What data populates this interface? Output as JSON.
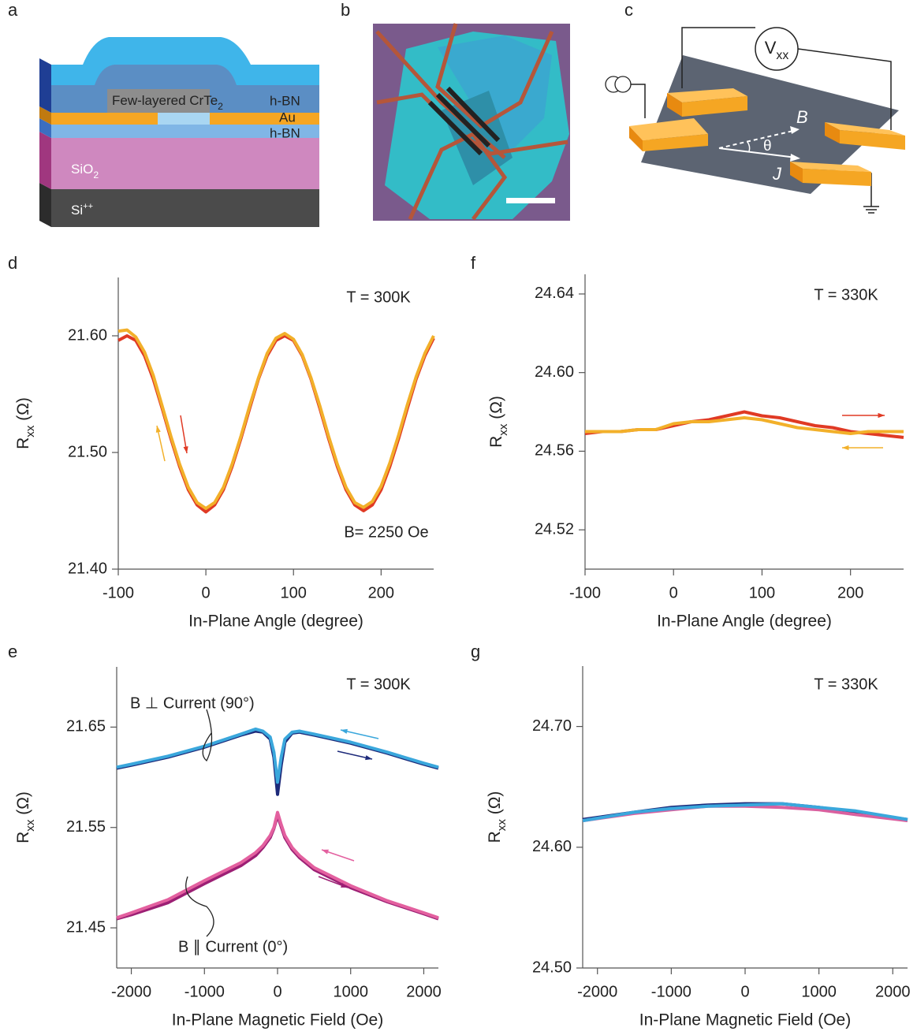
{
  "panel_labels": [
    "a",
    "b",
    "c"
  ],
  "device_stack": {
    "flake": {
      "text": "Few-layered CrTe",
      "sub": "2"
    },
    "top_hbn": "h-BN",
    "au": "Au",
    "bottom_hbn": "h-BN",
    "sio2": {
      "text": "SiO",
      "sub": "2"
    },
    "si": {
      "text": "Si",
      "sup": "++"
    }
  },
  "measurement": {
    "voltmeter": {
      "text": "V",
      "sub": "xx"
    },
    "field": "B",
    "angle": "θ",
    "current": "J"
  },
  "chart_data": [
    {
      "type": "line",
      "panel": "d",
      "annotations": [
        "T = 300K",
        "B= 2250 Oe"
      ],
      "x_label": "In-Plane Angle (degree)",
      "y_label": {
        "text": "R",
        "sub": "xx",
        "suffix": " (Ω)"
      },
      "xlim": [
        -100,
        260
      ],
      "xticks": [
        -100,
        0,
        100,
        200
      ],
      "ylim": [
        21.4,
        21.65
      ],
      "yticks": [
        {
          "value": 21.4,
          "label": "21.40"
        },
        {
          "value": 21.5,
          "label": "21.50"
        },
        {
          "value": 21.6,
          "label": "21.60"
        }
      ],
      "x": [
        -100,
        -90,
        -80,
        -70,
        -60,
        -50,
        -40,
        -30,
        -20,
        -10,
        0,
        10,
        20,
        30,
        40,
        50,
        60,
        70,
        80,
        90,
        100,
        110,
        120,
        130,
        140,
        150,
        160,
        170,
        180,
        190,
        200,
        210,
        220,
        230,
        240,
        250,
        260
      ],
      "series": [
        {
          "color": "#e03a24",
          "values": [
            21.596,
            21.6,
            21.596,
            21.583,
            21.563,
            21.538,
            21.512,
            21.488,
            21.468,
            21.455,
            21.449,
            21.455,
            21.468,
            21.488,
            21.512,
            21.538,
            21.563,
            21.583,
            21.596,
            21.6,
            21.596,
            21.583,
            21.563,
            21.538,
            21.512,
            21.488,
            21.468,
            21.455,
            21.45,
            21.455,
            21.468,
            21.488,
            21.512,
            21.538,
            21.563,
            21.583,
            21.598
          ]
        },
        {
          "color": "#f2b02a",
          "values": [
            21.604,
            21.605,
            21.599,
            21.586,
            21.566,
            21.54,
            21.514,
            21.49,
            21.47,
            21.457,
            21.452,
            21.457,
            21.47,
            21.49,
            21.514,
            21.54,
            21.564,
            21.585,
            21.598,
            21.602,
            21.597,
            21.584,
            21.564,
            21.54,
            21.514,
            21.49,
            21.47,
            21.457,
            21.453,
            21.458,
            21.471,
            21.491,
            21.515,
            21.541,
            21.565,
            21.585,
            21.6
          ]
        }
      ]
    },
    {
      "type": "line",
      "panel": "e",
      "annotations": [
        "T = 300K",
        "B ⊥ Current (90°)",
        "B ∥ Current (0°)"
      ],
      "x_label": "In-Plane Magnetic Field (Oe)",
      "y_label": {
        "text": "R",
        "sub": "xx",
        "suffix": " (Ω)"
      },
      "xlim": [
        -2200,
        2200
      ],
      "xticks": [
        -2000,
        -1000,
        0,
        1000,
        2000
      ],
      "ylim": [
        21.41,
        21.71
      ],
      "yticks": [
        21.45,
        21.55,
        21.65
      ],
      "x": [
        -2200,
        -2000,
        -1500,
        -1000,
        -500,
        -300,
        -200,
        -100,
        -50,
        0,
        50,
        100,
        200,
        300,
        500,
        1000,
        1500,
        2000,
        2200
      ],
      "series": [
        {
          "color": "#1d2a7a",
          "values": [
            21.609,
            21.612,
            21.62,
            21.63,
            21.642,
            21.646,
            21.645,
            21.638,
            21.62,
            21.583,
            21.612,
            21.635,
            21.644,
            21.645,
            21.642,
            21.634,
            21.624,
            21.613,
            21.609
          ]
        },
        {
          "color": "#3aa7dc",
          "values": [
            21.61,
            21.613,
            21.621,
            21.631,
            21.643,
            21.648,
            21.646,
            21.64,
            21.625,
            21.595,
            21.62,
            21.638,
            21.645,
            21.646,
            21.643,
            21.635,
            21.625,
            21.614,
            21.61
          ]
        },
        {
          "color": "#9c1f74",
          "values": [
            21.459,
            21.463,
            21.475,
            21.494,
            21.512,
            21.522,
            21.53,
            21.54,
            21.549,
            21.562,
            21.551,
            21.54,
            21.528,
            21.52,
            21.508,
            21.49,
            21.476,
            21.464,
            21.459
          ]
        },
        {
          "color": "#e3609f",
          "values": [
            21.46,
            21.465,
            21.478,
            21.497,
            21.515,
            21.525,
            21.532,
            21.542,
            21.55,
            21.565,
            21.553,
            21.542,
            21.53,
            21.522,
            21.51,
            21.492,
            21.477,
            21.465,
            21.46
          ]
        }
      ]
    },
    {
      "type": "line",
      "panel": "f",
      "annotations": [
        "T = 330K"
      ],
      "x_label": "In-Plane Angle (degree)",
      "y_label": {
        "text": "R",
        "sub": "xx",
        "suffix": " (Ω)"
      },
      "xlim": [
        -100,
        260
      ],
      "xticks": [
        -100,
        0,
        100,
        200
      ],
      "ylim": [
        24.5,
        24.65
      ],
      "yticks": [
        24.52,
        24.56,
        {
          "value": 24.6,
          "label": "24.60"
        },
        24.64
      ],
      "x": [
        -100,
        -80,
        -60,
        -40,
        -20,
        0,
        20,
        40,
        60,
        80,
        100,
        120,
        140,
        160,
        180,
        200,
        220,
        240,
        260
      ],
      "series": [
        {
          "color": "#e03a24",
          "values": [
            24.569,
            24.57,
            24.57,
            24.571,
            24.571,
            24.573,
            24.575,
            24.576,
            24.578,
            24.58,
            24.578,
            24.577,
            24.575,
            24.573,
            24.572,
            24.57,
            24.569,
            24.568,
            24.567
          ]
        },
        {
          "color": "#f2b02a",
          "values": [
            24.57,
            24.57,
            24.57,
            24.571,
            24.571,
            24.574,
            24.575,
            24.575,
            24.576,
            24.577,
            24.576,
            24.574,
            24.572,
            24.571,
            24.57,
            24.569,
            24.57,
            24.57,
            24.57
          ]
        }
      ]
    },
    {
      "type": "line",
      "panel": "g",
      "annotations": [
        "T = 330K"
      ],
      "x_label": "In-Plane Magnetic Field (Oe)",
      "y_label": {
        "text": "R",
        "sub": "xx",
        "suffix": " (Ω)"
      },
      "xlim": [
        -2200,
        2200
      ],
      "xticks": [
        -2000,
        -1000,
        0,
        1000,
        2000
      ],
      "ylim": [
        24.5,
        24.75
      ],
      "yticks": [
        {
          "value": 24.5,
          "label": "24.50"
        },
        {
          "value": 24.6,
          "label": "24.60"
        },
        {
          "value": 24.7,
          "label": "24.70"
        }
      ],
      "x": [
        -2200,
        -1500,
        -1000,
        -500,
        0,
        500,
        1000,
        1500,
        2200
      ],
      "series": [
        {
          "color": "#1d2a7a",
          "values": [
            24.623,
            24.629,
            24.633,
            24.635,
            24.636,
            24.636,
            24.633,
            24.629,
            24.623
          ]
        },
        {
          "color": "#d9609f",
          "values": [
            24.622,
            24.628,
            24.631,
            24.634,
            24.634,
            24.633,
            24.631,
            24.627,
            24.622
          ]
        },
        {
          "color": "#3aa7dc",
          "values": [
            24.622,
            24.629,
            24.632,
            24.634,
            24.635,
            24.636,
            24.633,
            24.63,
            24.623
          ]
        }
      ]
    }
  ]
}
